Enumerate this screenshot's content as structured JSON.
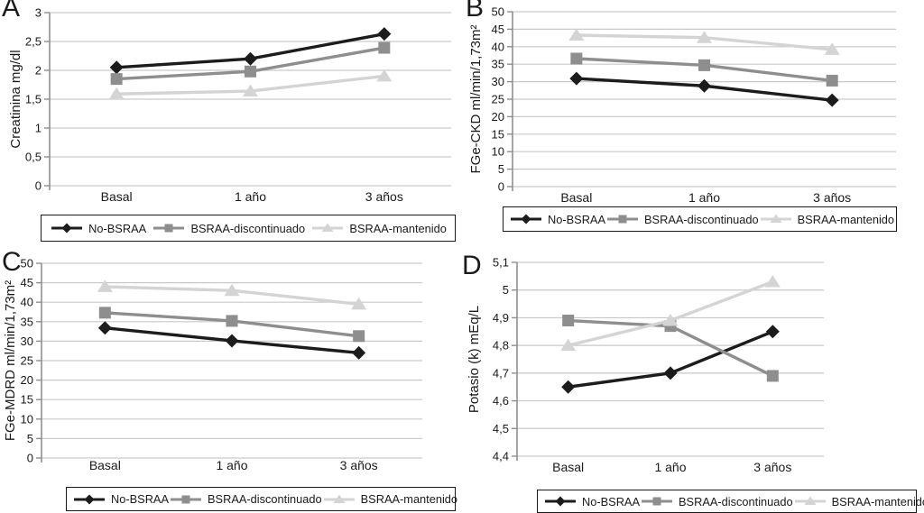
{
  "figure": {
    "background_color": "#ffffff",
    "text_color": "#1a1a1a",
    "grid_color": "#c9c9c9",
    "axis_color": "#8f8f8f"
  },
  "legend": {
    "items": [
      {
        "label": "No-BSRAA",
        "marker": "diamond",
        "color": "#1c1c1c"
      },
      {
        "label": "BSRAA-discontinuado",
        "marker": "square",
        "color": "#8e8e8e"
      },
      {
        "label": "BSRAA-mantenido",
        "marker": "triangle",
        "color": "#d4d4d4"
      }
    ]
  },
  "chart_data": [
    {
      "panel": "A",
      "type": "line",
      "title": "",
      "xlabel": "",
      "ylabel": "Creatinina mg/dl",
      "categories": [
        "Basal",
        "1 año",
        "3 años"
      ],
      "ylim": [
        0,
        3
      ],
      "ytick_step": 0.5,
      "ytick_labels": [
        "3",
        "2,5",
        "2",
        "1,5",
        "1",
        "0,5",
        "0"
      ],
      "grid": true,
      "legend_position": "bottom",
      "series": [
        {
          "name": "No-BSRAA",
          "marker": "diamond",
          "color": "#1c1c1c",
          "values": [
            2.05,
            2.2,
            2.63
          ]
        },
        {
          "name": "BSRAA-discontinuado",
          "marker": "square",
          "color": "#8e8e8e",
          "values": [
            1.85,
            1.98,
            2.39
          ]
        },
        {
          "name": "BSRAA-mantenido",
          "marker": "triangle",
          "color": "#d4d4d4",
          "values": [
            1.59,
            1.64,
            1.9
          ]
        }
      ]
    },
    {
      "panel": "B",
      "type": "line",
      "title": "",
      "xlabel": "",
      "ylabel": "FGe-CKD ml/min/1,73m²",
      "categories": [
        "Basal",
        "1 año",
        "3 años"
      ],
      "ylim": [
        0,
        50
      ],
      "ytick_step": 5,
      "ytick_labels": [
        "50",
        "45",
        "40",
        "35",
        "30",
        "25",
        "20",
        "15",
        "10",
        "5",
        "0"
      ],
      "grid": true,
      "legend_position": "bottom",
      "series": [
        {
          "name": "No-BSRAA",
          "marker": "diamond",
          "color": "#1c1c1c",
          "values": [
            30.9,
            28.8,
            24.7
          ]
        },
        {
          "name": "BSRAA-discontinuado",
          "marker": "square",
          "color": "#8e8e8e",
          "values": [
            36.6,
            34.7,
            30.3
          ]
        },
        {
          "name": "BSRAA-mantenido",
          "marker": "triangle",
          "color": "#d4d4d4",
          "values": [
            43.3,
            42.6,
            39.2
          ]
        }
      ]
    },
    {
      "panel": "C",
      "type": "line",
      "title": "",
      "xlabel": "",
      "ylabel": "FGe-MDRD ml/min/1,73m²",
      "categories": [
        "Basal",
        "1 año",
        "3 años"
      ],
      "ylim": [
        0,
        50
      ],
      "ytick_step": 5,
      "ytick_labels": [
        "50",
        "45",
        "40",
        "35",
        "30",
        "25",
        "20",
        "15",
        "10",
        "5",
        "0"
      ],
      "grid": true,
      "legend_position": "bottom",
      "series": [
        {
          "name": "No-BSRAA",
          "marker": "diamond",
          "color": "#1c1c1c",
          "values": [
            33.4,
            30.1,
            27
          ]
        },
        {
          "name": "BSRAA-discontinuado",
          "marker": "square",
          "color": "#8e8e8e",
          "values": [
            37.3,
            35.2,
            31.3
          ]
        },
        {
          "name": "BSRAA-mantenido",
          "marker": "triangle",
          "color": "#d4d4d4",
          "values": [
            44,
            43,
            39.5
          ]
        }
      ]
    },
    {
      "panel": "D",
      "type": "line",
      "title": "",
      "xlabel": "",
      "ylabel": "Potasio (k) mEq/L",
      "categories": [
        "Basal",
        "1 año",
        "3 años"
      ],
      "ylim": [
        4.4,
        5.1
      ],
      "ytick_step": 0.1,
      "ytick_labels": [
        "5,1",
        "5",
        "4,9",
        "4,8",
        "4,7",
        "4,6",
        "4,5",
        "4,4"
      ],
      "grid": true,
      "legend_position": "bottom",
      "series": [
        {
          "name": "No-BSRAA",
          "marker": "diamond",
          "color": "#1c1c1c",
          "values": [
            4.65,
            4.7,
            4.85
          ]
        },
        {
          "name": "BSRAA-discontinuado",
          "marker": "square",
          "color": "#8e8e8e",
          "values": [
            4.89,
            4.87,
            4.69
          ]
        },
        {
          "name": "BSRAA-mantenido",
          "marker": "triangle",
          "color": "#d4d4d4",
          "values": [
            4.8,
            4.89,
            5.03
          ]
        }
      ]
    }
  ]
}
